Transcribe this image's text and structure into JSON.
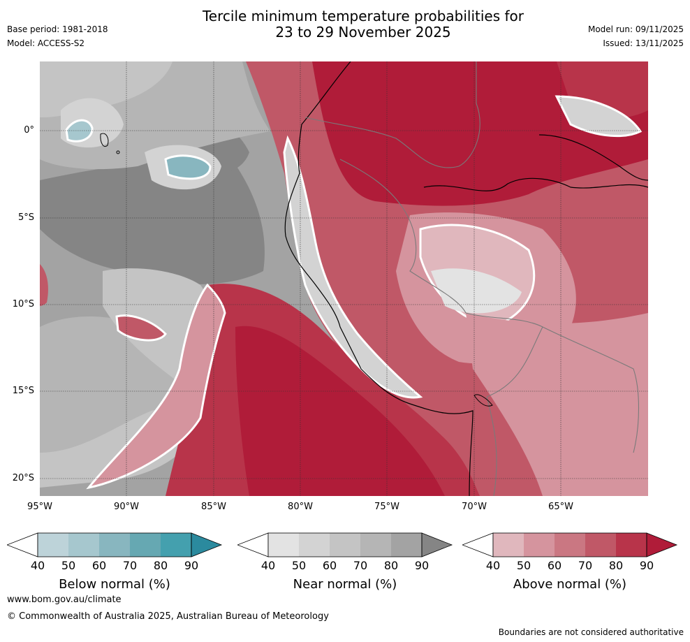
{
  "header": {
    "title_line1": "Tercile minimum temperature probabilities for",
    "title_line2": "23 to 29 November 2025",
    "base_period": "Base period: 1981-2018",
    "model": "Model: ACCESS-S2",
    "model_run": "Model run: 09/11/2025",
    "issued": "Issued: 13/11/2025"
  },
  "map": {
    "lat_labels": [
      "0°",
      "5°S",
      "10°S",
      "15°S",
      "20°S"
    ],
    "lon_labels": [
      "95°W",
      "90°W",
      "85°W",
      "80°W",
      "75°W",
      "70°W",
      "65°W"
    ]
  },
  "legends": [
    {
      "title": "Below normal (%)",
      "ticks": [
        "40",
        "50",
        "60",
        "70",
        "80",
        "90"
      ],
      "colors": [
        "#bdd3d9",
        "#a6c7ce",
        "#88b6bf",
        "#66a8b2",
        "#44a0ae",
        "#2b8a9e"
      ]
    },
    {
      "title": "Near normal (%)",
      "ticks": [
        "40",
        "50",
        "60",
        "70",
        "80",
        "90"
      ],
      "colors": [
        "#e3e3e3",
        "#d3d3d3",
        "#c4c4c4",
        "#b5b5b5",
        "#a3a3a3",
        "#858585"
      ]
    },
    {
      "title": "Above normal (%)",
      "ticks": [
        "40",
        "50",
        "60",
        "70",
        "80",
        "90"
      ],
      "colors": [
        "#e0b7bd",
        "#d5949e",
        "#ca7782",
        "#c05867",
        "#b8344a",
        "#b01c39"
      ]
    }
  ],
  "footer": {
    "url": "www.bom.gov.au/climate",
    "copyright": "© Commonwealth of Australia 2025, Australian Bureau of Meteorology",
    "note": "Boundaries are not considered authoritative"
  }
}
